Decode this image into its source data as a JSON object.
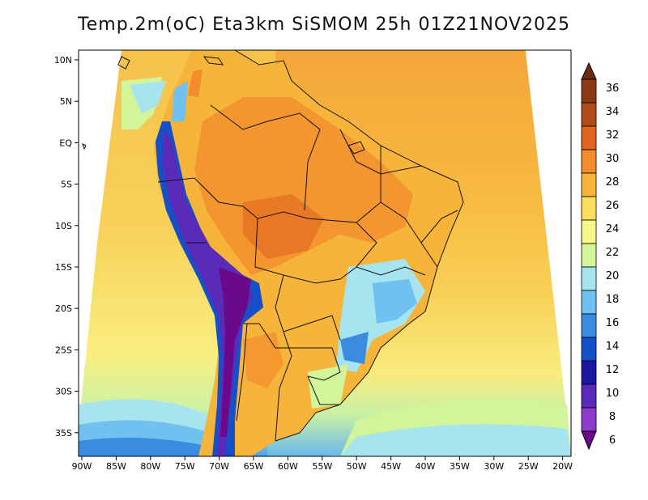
{
  "title": "Temp.2m(oC) Eta3km SiSMOM 25h 01Z21NOV2025",
  "map": {
    "lat_ticks": [
      "10N",
      "5N",
      "EQ",
      "5S",
      "10S",
      "15S",
      "20S",
      "25S",
      "30S",
      "35S"
    ],
    "lon_ticks": [
      "90W",
      "85W",
      "80W",
      "75W",
      "70W",
      "65W",
      "60W",
      "55W",
      "50W",
      "45W",
      "40W",
      "35W",
      "30W",
      "25W",
      "20W"
    ]
  },
  "colorbar": {
    "labels": [
      "36",
      "34",
      "32",
      "30",
      "28",
      "26",
      "24",
      "22",
      "20",
      "18",
      "16",
      "14",
      "12",
      "10",
      "8",
      "6"
    ],
    "colors": [
      "#6e2a12",
      "#8c3a14",
      "#b24a18",
      "#e0661f",
      "#f28c2c",
      "#f7b43a",
      "#f9df5c",
      "#f7f78a",
      "#d2f59a",
      "#a6e4f0",
      "#70c0f0",
      "#3a8ce0",
      "#1550c8",
      "#1a1aa0",
      "#5a2ab8",
      "#8c3cc8",
      "#6a0a8a"
    ]
  }
}
